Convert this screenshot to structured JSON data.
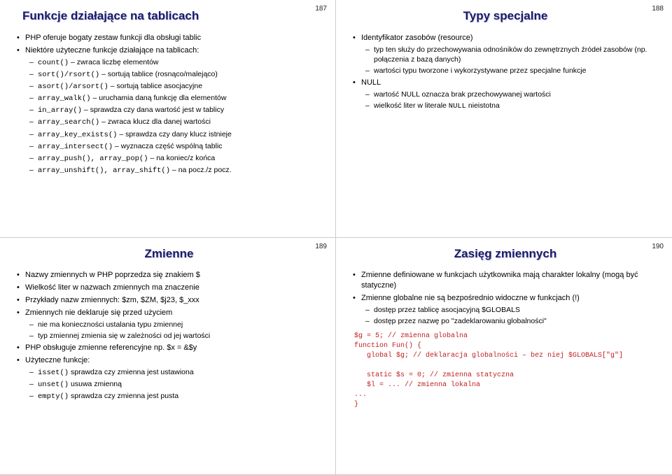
{
  "slide1": {
    "pagenum": "187",
    "title": "Funkcje działające na tablicach",
    "b1": "PHP oferuje bogaty zestaw funkcji dla obsługi tablic",
    "b2": "Niektóre użyteczne funkcje działające na tablicach:",
    "s1a": "count()",
    "s1b": " – zwraca liczbę elementów",
    "s2a": "sort()/rsort()",
    "s2b": " – sortują tablice (rosnąco/malejąco)",
    "s3a": "asort()/arsort()",
    "s3b": " – sortują tablice asocjacyjne",
    "s4a": "array_walk()",
    "s4b": " – uruchamia daną funkcję dla elementów",
    "s5a": "in_array()",
    "s5b": " – sprawdza czy dana wartość jest w tablicy",
    "s6a": "array_search()",
    "s6b": " – zwraca klucz dla danej wartości",
    "s7a": "array_key_exists()",
    "s7b": " – sprawdza czy dany klucz istnieje",
    "s8a": "array_intersect()",
    "s8b": " – wyznacza część wspólną tablic",
    "s9a": "array_push(), array_pop()",
    "s9b": " – na koniec/z końca",
    "s10a": "array_unshift(), array_shift()",
    "s10b": " – na pocz./z pocz."
  },
  "slide2": {
    "pagenum": "188",
    "title": "Typy specjalne",
    "b1": "Identyfikator zasobów (resource)",
    "s1": "typ ten służy do przechowywania odnośników do zewnętrznych źródeł zasobów (np. połączenia z bazą danych)",
    "s2": "wartości typu tworzone i wykorzystywane przez specjalne funkcje",
    "b2": "NULL",
    "s3": "wartość NULL oznacza brak przechowywanej wartości",
    "s4a": "wielkość liter w literale ",
    "s4b": "NULL",
    "s4c": " nieistotna"
  },
  "slide3": {
    "pagenum": "189",
    "title": "Zmienne",
    "b1": "Nazwy zmiennych w PHP poprzedza się znakiem $",
    "b2": "Wielkość liter w nazwach zmiennych ma znaczenie",
    "b3": "Przykłady nazw zmiennych: $zm, $ZM, $j23, $_xxx",
    "b4": "Zmiennych nie deklaruje się przed użyciem",
    "s4a": "nie ma konieczności ustalania typu zmiennej",
    "s4b": "typ zmiennej zmienia się w zależności od jej wartości",
    "b5": "PHP obsługuje zmienne referencyjne np. $x = &$y",
    "b6": "Użyteczne funkcje:",
    "s6a1": "isset()",
    "s6a2": " sprawdza czy zmienna jest ustawiona",
    "s6b1": "unset()",
    "s6b2": " usuwa zmienną",
    "s6c1": "empty()",
    "s6c2": " sprawdza czy zmienna jest pusta"
  },
  "slide4": {
    "pagenum": "190",
    "title": "Zasięg zmiennych",
    "b1": "Zmienne definiowane w funkcjach użytkownika mają charakter lokalny (mogą być statyczne)",
    "b2": "Zmienne globalne nie są bezpośrednio widoczne w funkcjach (!)",
    "s1": "dostęp przez tablicę asocjacyjną $GLOBALS",
    "s2": "dostęp przez nazwę po \"zadeklarowaniu globalności\"",
    "code": "$g = 5; // zmienna globalna\nfunction Fun() {\n   global $g; // deklaracja globalności – bez niej $GLOBALS[\"g\"]\n\n   static $s = 0; // zmienna statyczna\n   $l = ... // zmienna lokalna\n...\n}"
  }
}
